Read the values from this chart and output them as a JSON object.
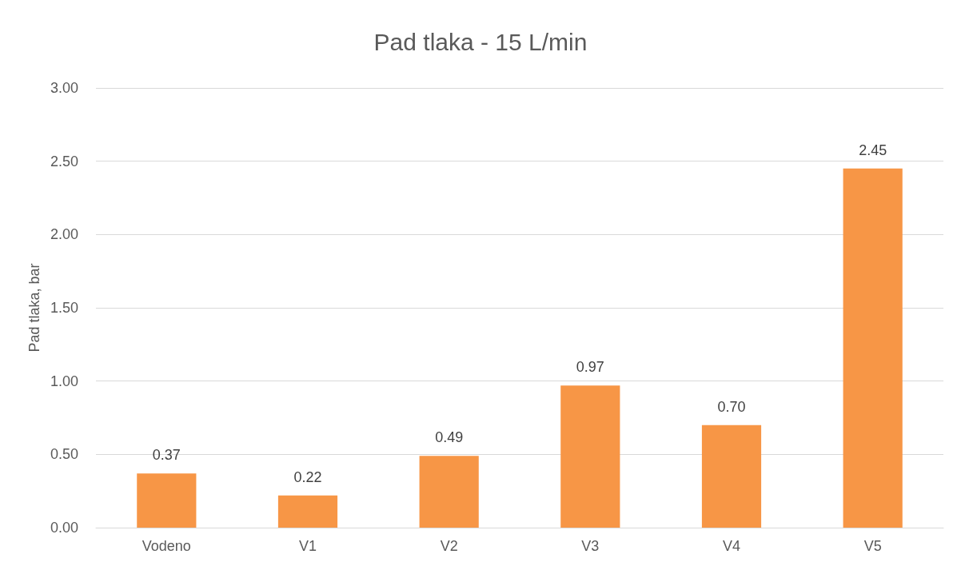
{
  "chart_data": {
    "type": "bar",
    "title": "Pad tlaka - 15 L/min",
    "ylabel": "Pad tlaka, bar",
    "categories": [
      "Vodeno",
      "V1",
      "V2",
      "V3",
      "V4",
      "V5"
    ],
    "values": [
      0.37,
      0.22,
      0.49,
      0.97,
      0.7,
      2.45
    ],
    "value_labels": [
      "0.37",
      "0.22",
      "0.49",
      "0.97",
      "0.70",
      "2.45"
    ],
    "color": "#f79646",
    "ylim": [
      0,
      3
    ],
    "yticks": [
      {
        "value": 0,
        "label": "0.00"
      },
      {
        "value": 0.5,
        "label": "0.50"
      },
      {
        "value": 1,
        "label": "1.00"
      },
      {
        "value": 1.5,
        "label": "1.50"
      },
      {
        "value": 2,
        "label": "2.00"
      },
      {
        "value": 2.5,
        "label": "2.50"
      },
      {
        "value": 3,
        "label": "3.00"
      }
    ],
    "grid": "y"
  }
}
